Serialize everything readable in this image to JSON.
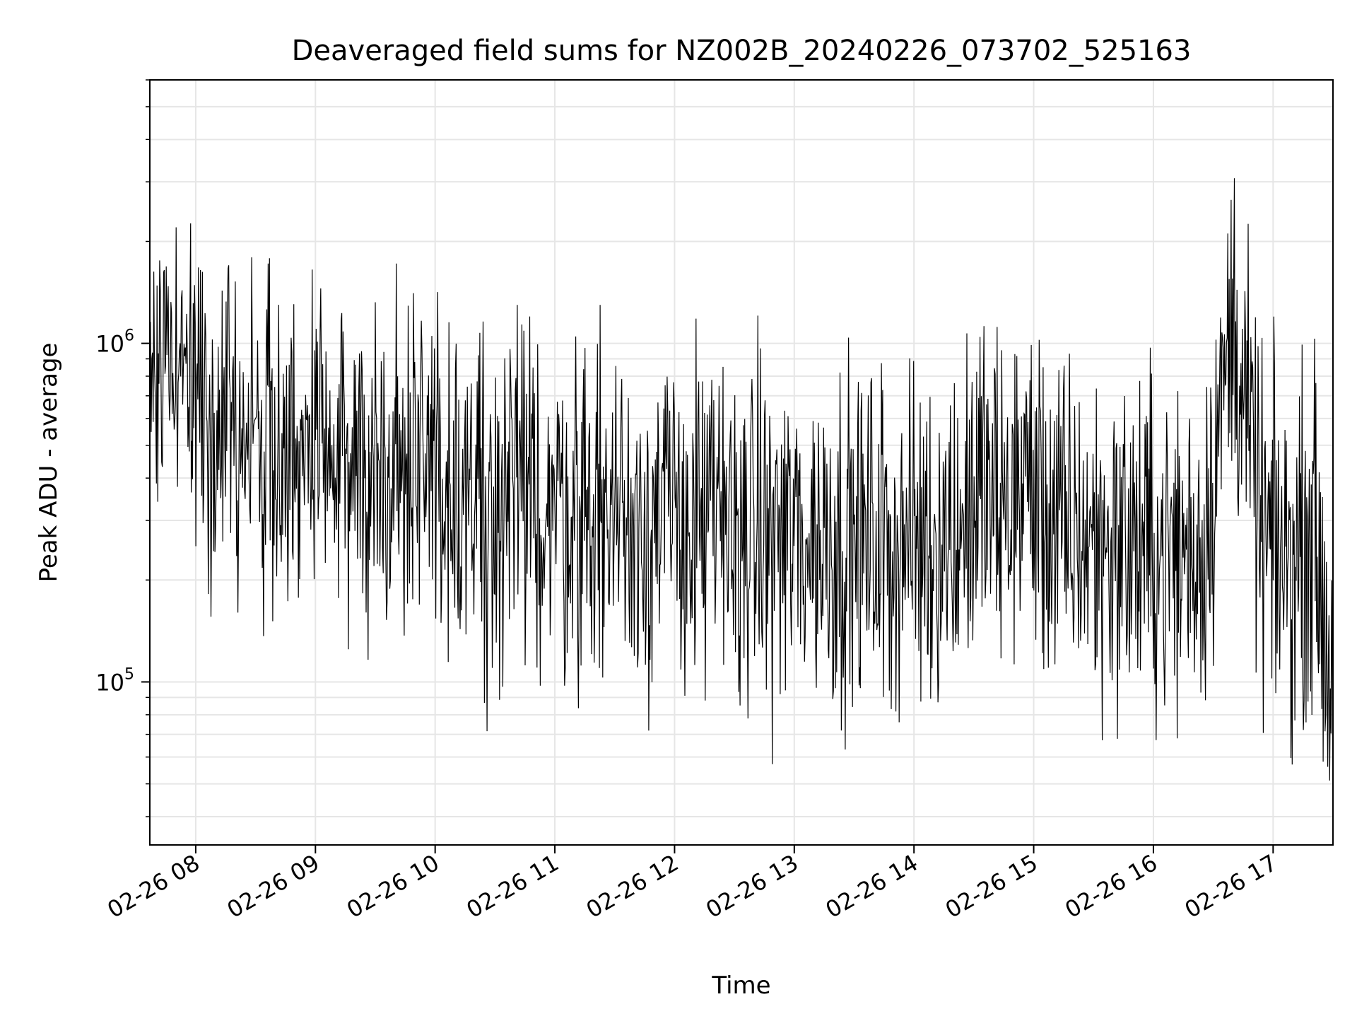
{
  "chart_data": {
    "type": "line",
    "title": "Deaveraged field sums for NZ002B_20240226_073702_525163",
    "xlabel": "Time",
    "ylabel": "Peak ADU - average",
    "xlim": [
      "2024-02-26 07:37",
      "2024-02-26 17:30"
    ],
    "ylim": [
      33000,
      6000000
    ],
    "yscale": "log",
    "grid": true,
    "line_color": "#000000",
    "x_ticks": [
      {
        "value": "2024-02-26 08:00",
        "label": "02-26 08"
      },
      {
        "value": "2024-02-26 09:00",
        "label": "02-26 09"
      },
      {
        "value": "2024-02-26 10:00",
        "label": "02-26 10"
      },
      {
        "value": "2024-02-26 11:00",
        "label": "02-26 11"
      },
      {
        "value": "2024-02-26 12:00",
        "label": "02-26 12"
      },
      {
        "value": "2024-02-26 13:00",
        "label": "02-26 13"
      },
      {
        "value": "2024-02-26 14:00",
        "label": "02-26 14"
      },
      {
        "value": "2024-02-26 15:00",
        "label": "02-26 15"
      },
      {
        "value": "2024-02-26 16:00",
        "label": "02-26 16"
      },
      {
        "value": "2024-02-26 17:00",
        "label": "02-26 17"
      }
    ],
    "y_ticks": [
      {
        "value": 100000,
        "base": "10",
        "exp": "5"
      },
      {
        "value": 1000000,
        "base": "10",
        "exp": "6"
      }
    ],
    "x": [
      "2024-02-26 07:37",
      "2024-02-26 07:45",
      "2024-02-26 07:50",
      "2024-02-26 07:55",
      "2024-02-26 08:00",
      "2024-02-26 08:10",
      "2024-02-26 08:20",
      "2024-02-26 08:30",
      "2024-02-26 08:40",
      "2024-02-26 08:50",
      "2024-02-26 09:00",
      "2024-02-26 09:15",
      "2024-02-26 09:25",
      "2024-02-26 09:40",
      "2024-02-26 09:55",
      "2024-02-26 10:05",
      "2024-02-26 10:20",
      "2024-02-26 10:40",
      "2024-02-26 11:00",
      "2024-02-26 11:20",
      "2024-02-26 11:40",
      "2024-02-26 12:00",
      "2024-02-26 12:20",
      "2024-02-26 12:40",
      "2024-02-26 13:00",
      "2024-02-26 13:20",
      "2024-02-26 13:40",
      "2024-02-26 14:00",
      "2024-02-26 14:20",
      "2024-02-26 14:35",
      "2024-02-26 14:45",
      "2024-02-26 14:55",
      "2024-02-26 15:10",
      "2024-02-26 15:30",
      "2024-02-26 15:50",
      "2024-02-26 16:10",
      "2024-02-26 16:25",
      "2024-02-26 16:40",
      "2024-02-26 16:55",
      "2024-02-26 17:10",
      "2024-02-26 17:20",
      "2024-02-26 17:30"
    ],
    "series": [
      {
        "values": [
          850000,
          950000,
          1100000,
          800000,
          700000,
          650000,
          580000,
          520000,
          500000,
          470000,
          450000,
          430000,
          450000,
          420000,
          470000,
          400000,
          360000,
          340000,
          330000,
          320000,
          310000,
          300000,
          290000,
          270000,
          265000,
          260000,
          255000,
          260000,
          270000,
          380000,
          300000,
          420000,
          280000,
          260000,
          250000,
          240000,
          250000,
          1200000,
          260000,
          220000,
          300000,
          90000
        ]
      }
    ]
  }
}
